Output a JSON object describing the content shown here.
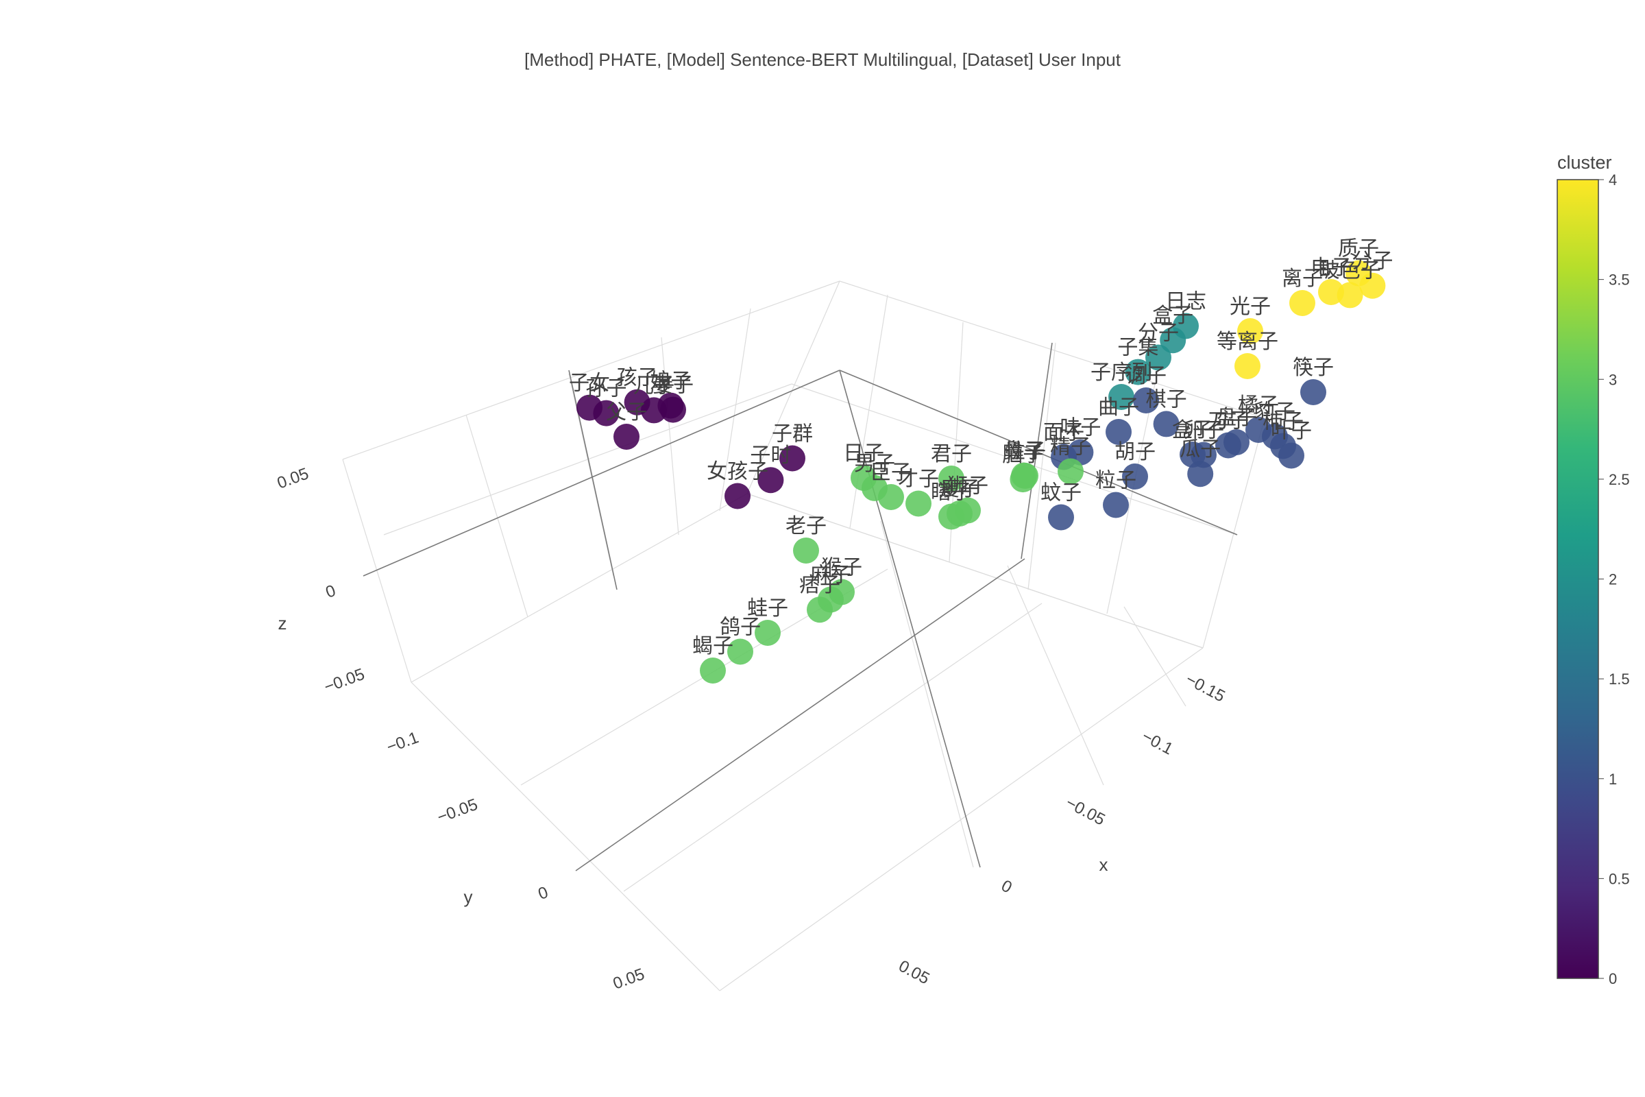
{
  "chart_data": {
    "type": "scatter3d",
    "title": "[Method] PHATE, [Model] Sentence-BERT Multilingual, [Dataset] User Input",
    "axes": {
      "x": {
        "title": "x",
        "ticks": [
          "−0.15",
          "−0.1",
          "−0.05",
          "0",
          "0.05"
        ],
        "tick_values": [
          -0.15,
          -0.1,
          -0.05,
          0,
          0.05
        ]
      },
      "y": {
        "title": "y",
        "ticks": [
          "−0.1",
          "−0.05",
          "0",
          "0.05"
        ],
        "tick_values": [
          -0.1,
          -0.05,
          0,
          0.05
        ]
      },
      "z": {
        "title": "z",
        "ticks": [
          "−0.05",
          "0",
          "0.05"
        ],
        "tick_values": [
          -0.05,
          0,
          0.05
        ]
      }
    },
    "colorbar": {
      "title": "cluster",
      "ticks": [
        "4",
        "3.5",
        "3",
        "2.5",
        "2",
        "1.5",
        "1",
        "0.5",
        "0"
      ],
      "min": 0,
      "max": 4,
      "colorscale": [
        "#440154",
        "#482878",
        "#3e4989",
        "#31688e",
        "#26828e",
        "#1f9e89",
        "#35b779",
        "#6ece58",
        "#b5de2b",
        "#fde725"
      ]
    },
    "grid": true,
    "points": [
      {
        "label": "子女",
        "cluster": 0,
        "x": -0.02,
        "y": 0.08,
        "z": 0.062
      },
      {
        "label": "孙子",
        "cluster": 0,
        "x": -0.025,
        "y": 0.078,
        "z": 0.06
      },
      {
        "label": "孩子",
        "cluster": 0,
        "x": -0.03,
        "y": 0.072,
        "z": 0.061
      },
      {
        "label": "儿子",
        "cluster": 0,
        "x": -0.035,
        "y": 0.07,
        "z": 0.058
      },
      {
        "label": "娘子",
        "cluster": 0,
        "x": -0.04,
        "y": 0.068,
        "z": 0.06
      },
      {
        "label": "父子",
        "cluster": 0,
        "x": -0.03,
        "y": 0.075,
        "z": 0.05
      },
      {
        "label": "妻子",
        "cluster": 0,
        "x": -0.045,
        "y": 0.07,
        "z": 0.062
      },
      {
        "label": "子群",
        "cluster": 0,
        "x": -0.07,
        "y": 0.05,
        "z": 0.035
      },
      {
        "label": "子时",
        "cluster": 0,
        "x": -0.068,
        "y": 0.055,
        "z": 0.03
      },
      {
        "label": "女孩子",
        "cluster": 0,
        "x": -0.06,
        "y": 0.06,
        "z": 0.025
      },
      {
        "label": "日子",
        "cluster": 3,
        "x": -0.07,
        "y": 0.03,
        "z": 0.01
      },
      {
        "label": "男子",
        "cluster": 3,
        "x": -0.072,
        "y": 0.028,
        "z": 0.005
      },
      {
        "label": "臣子",
        "cluster": 3,
        "x": -0.075,
        "y": 0.025,
        "z": 0.0
      },
      {
        "label": "才子",
        "cluster": 3,
        "x": -0.08,
        "y": 0.02,
        "z": -0.005
      },
      {
        "label": "君子",
        "cluster": 3,
        "x": -0.06,
        "y": 0.0,
        "z": -0.02
      },
      {
        "label": "老子",
        "cluster": 3,
        "x": -0.04,
        "y": 0.03,
        "z": -0.03
      },
      {
        "label": "性子",
        "cluster": 3,
        "x": -0.08,
        "y": -0.01,
        "z": -0.02
      },
      {
        "label": "脑子",
        "cluster": 3,
        "x": -0.075,
        "y": -0.012,
        "z": -0.025
      },
      {
        "label": "鼻子",
        "cluster": 3,
        "x": -0.07,
        "y": -0.015,
        "z": -0.028
      },
      {
        "label": "精子",
        "cluster": 3,
        "x": -0.085,
        "y": -0.02,
        "z": -0.025
      },
      {
        "label": "瞎子",
        "cluster": 3,
        "x": -0.06,
        "y": 0.0,
        "z": -0.035
      },
      {
        "label": "瘦子",
        "cluster": 3,
        "x": -0.055,
        "y": -0.005,
        "z": -0.04
      },
      {
        "label": "狮子",
        "cluster": 3,
        "x": -0.05,
        "y": -0.01,
        "z": -0.045
      },
      {
        "label": "猴子",
        "cluster": 3,
        "x": -0.04,
        "y": 0.02,
        "z": -0.055
      },
      {
        "label": "麻子",
        "cluster": 3,
        "x": -0.038,
        "y": 0.022,
        "z": -0.057
      },
      {
        "label": "痞子",
        "cluster": 3,
        "x": -0.036,
        "y": 0.024,
        "z": -0.06
      },
      {
        "label": "蛙子",
        "cluster": 3,
        "x": -0.02,
        "y": 0.03,
        "z": -0.07
      },
      {
        "label": "鸽子",
        "cluster": 3,
        "x": -0.015,
        "y": 0.035,
        "z": -0.075
      },
      {
        "label": "蝎子",
        "cluster": 3,
        "x": -0.01,
        "y": 0.04,
        "z": -0.08
      },
      {
        "label": "面子",
        "cluster": 1,
        "x": -0.1,
        "y": -0.01,
        "z": -0.005
      },
      {
        "label": "味子",
        "cluster": 1,
        "x": -0.105,
        "y": -0.012,
        "z": -0.003
      },
      {
        "label": "曲子",
        "cluster": 1,
        "x": -0.11,
        "y": -0.02,
        "z": 0.0
      },
      {
        "label": "调子",
        "cluster": 1,
        "x": -0.115,
        "y": -0.025,
        "z": 0.01
      },
      {
        "label": "棋子",
        "cluster": 1,
        "x": -0.12,
        "y": -0.028,
        "z": 0.0
      },
      {
        "label": "盒子",
        "cluster": 1,
        "x": -0.13,
        "y": -0.03,
        "z": -0.01
      },
      {
        "label": "刀子",
        "cluster": 1,
        "x": -0.13,
        "y": -0.04,
        "z": -0.015
      },
      {
        "label": "盘子",
        "cluster": 1,
        "x": -0.125,
        "y": -0.045,
        "z": -0.02
      },
      {
        "label": "胡子",
        "cluster": 1,
        "x": -0.1,
        "y": -0.03,
        "z": -0.03
      },
      {
        "label": "蚊子",
        "cluster": 1,
        "x": -0.08,
        "y": -0.02,
        "z": -0.045
      },
      {
        "label": "粒子",
        "cluster": 1,
        "x": -0.09,
        "y": -0.03,
        "z": -0.045
      },
      {
        "label": "卵子",
        "cluster": 1,
        "x": -0.08,
        "y": -0.06,
        "z": -0.055
      },
      {
        "label": "瓜子",
        "cluster": 1,
        "x": -0.082,
        "y": -0.058,
        "z": -0.06
      },
      {
        "label": "橘子",
        "cluster": 1,
        "x": -0.09,
        "y": -0.07,
        "z": -0.05
      },
      {
        "label": "筷子",
        "cluster": 1,
        "x": -0.1,
        "y": -0.08,
        "z": -0.04
      },
      {
        "label": "豹子",
        "cluster": 1,
        "x": -0.08,
        "y": -0.08,
        "z": -0.065
      },
      {
        "label": "柿子",
        "cluster": 1,
        "x": -0.075,
        "y": -0.085,
        "z": -0.075
      },
      {
        "label": "叶子",
        "cluster": 1,
        "x": -0.07,
        "y": -0.09,
        "z": -0.085
      },
      {
        "label": "子序列",
        "cluster": 2,
        "x": -0.13,
        "y": -0.01,
        "z": 0.03
      },
      {
        "label": "子集",
        "cluster": 2,
        "x": -0.135,
        "y": -0.012,
        "z": 0.04
      },
      {
        "label": "分子",
        "cluster": 2,
        "x": -0.14,
        "y": -0.015,
        "z": 0.045
      },
      {
        "label": "盒子",
        "cluster": 2,
        "x": -0.142,
        "y": -0.018,
        "z": 0.05
      },
      {
        "label": "日志",
        "cluster": 2,
        "x": -0.145,
        "y": -0.02,
        "z": 0.055
      },
      {
        "label": "光子",
        "cluster": 4,
        "x": -0.16,
        "y": -0.03,
        "z": 0.05
      },
      {
        "label": "离子",
        "cluster": 4,
        "x": -0.15,
        "y": -0.05,
        "z": 0.04
      },
      {
        "label": "电子",
        "cluster": 4,
        "x": -0.165,
        "y": -0.05,
        "z": 0.05
      },
      {
        "label": "质子",
        "cluster": 4,
        "x": -0.17,
        "y": -0.055,
        "z": 0.055
      },
      {
        "label": "分子",
        "cluster": 4,
        "x": -0.168,
        "y": -0.06,
        "z": 0.045
      },
      {
        "label": "玻色子",
        "cluster": 4,
        "x": -0.16,
        "y": -0.058,
        "z": 0.04
      },
      {
        "label": "等离子",
        "cluster": 4,
        "x": -0.14,
        "y": -0.04,
        "z": 0.02
      }
    ]
  }
}
